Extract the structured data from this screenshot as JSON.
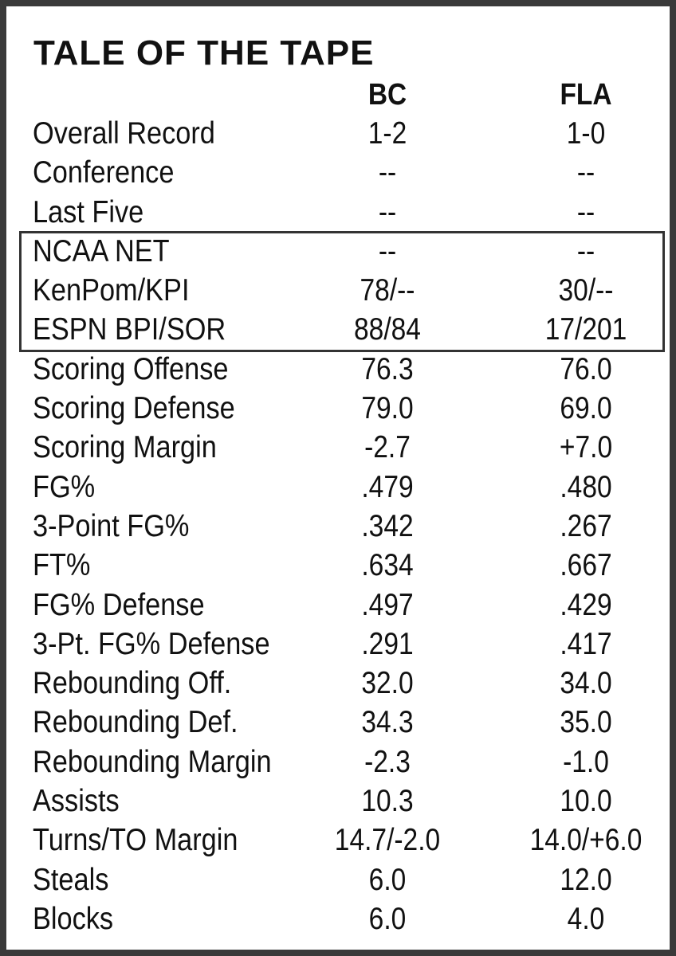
{
  "title": "TALE OF THE TAPE",
  "teams": {
    "bc": "BC",
    "fla": "FLA"
  },
  "rows": [
    {
      "label": "Overall Record",
      "bc": "1-2",
      "fla": "1-0"
    },
    {
      "label": "Conference",
      "bc": "--",
      "fla": "--"
    },
    {
      "label": "Last Five",
      "bc": "--",
      "fla": "--"
    },
    {
      "label": "NCAA NET",
      "bc": "--",
      "fla": "--"
    },
    {
      "label": "KenPom/KPI",
      "bc": "78/--",
      "fla": "30/--"
    },
    {
      "label": "ESPN BPI/SOR",
      "bc": "88/84",
      "fla": "17/201"
    },
    {
      "label": "Scoring Offense",
      "bc": "76.3",
      "fla": "76.0"
    },
    {
      "label": "Scoring Defense",
      "bc": "79.0",
      "fla": "69.0"
    },
    {
      "label": "Scoring Margin",
      "bc": "-2.7",
      "fla": "+7.0"
    },
    {
      "label": "FG%",
      "bc": ".479",
      "fla": ".480"
    },
    {
      "label": "3-Point FG%",
      "bc": ".342",
      "fla": ".267"
    },
    {
      "label": "FT%",
      "bc": ".634",
      "fla": ".667"
    },
    {
      "label": "FG% Defense",
      "bc": ".497",
      "fla": ".429"
    },
    {
      "label": "3-Pt. FG% Defense",
      "bc": ".291",
      "fla": ".417"
    },
    {
      "label": "Rebounding Off.",
      "bc": "32.0",
      "fla": "34.0"
    },
    {
      "label": "Rebounding Def.",
      "bc": "34.3",
      "fla": "35.0"
    },
    {
      "label": "Rebounding Margin",
      "bc": "-2.3",
      "fla": "-1.0"
    },
    {
      "label": "Assists",
      "bc": "10.3",
      "fla": "10.0"
    },
    {
      "label": "Turns/TO Margin",
      "bc": "14.7/-2.0",
      "fla": "14.0/+6.0"
    },
    {
      "label": "Steals",
      "bc": "6.0",
      "fla": "12.0"
    },
    {
      "label": "Blocks",
      "bc": "6.0",
      "fla": "4.0"
    }
  ]
}
